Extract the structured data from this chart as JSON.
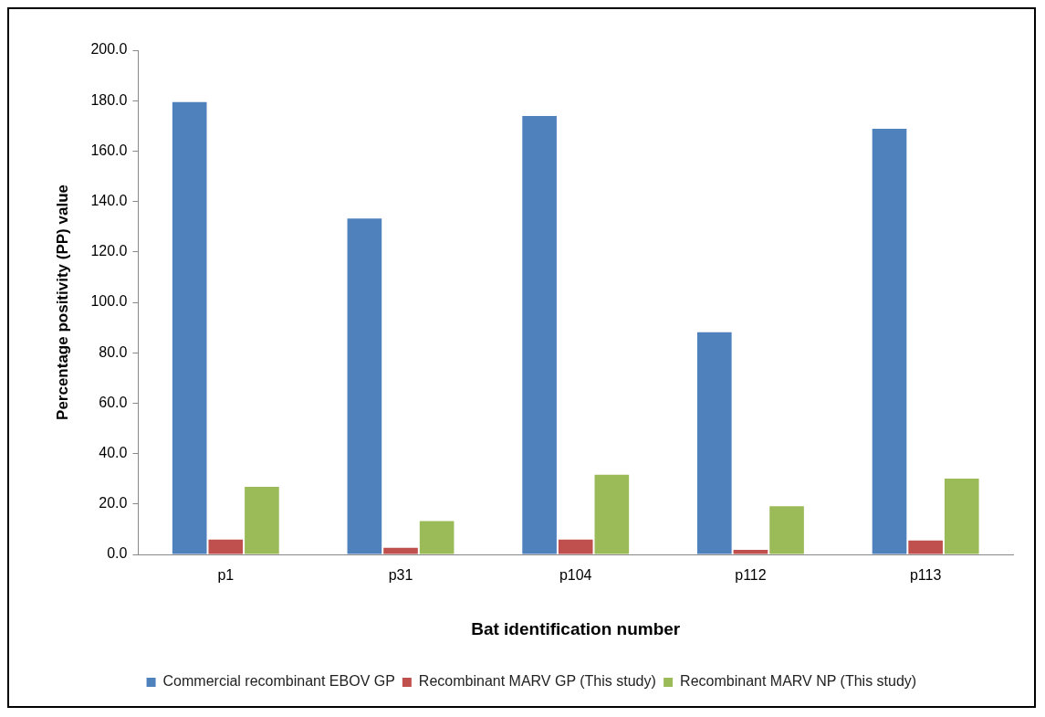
{
  "chart_data": {
    "type": "bar",
    "xlabel": "Bat identification number",
    "ylabel": "Percentage positivity (PP) value",
    "categories": [
      "p1",
      "p31",
      "p104",
      "p112",
      "p113"
    ],
    "series": [
      {
        "name": "Commercial recombinant EBOV GP",
        "color": "#4f81bd",
        "values": [
          179.4,
          133.2,
          173.9,
          88.1,
          168.8
        ]
      },
      {
        "name": "Recombinant MARV GP (This study)",
        "color": "#c0504d",
        "values": [
          5.9,
          2.6,
          5.9,
          1.8,
          5.5
        ]
      },
      {
        "name": "Recombinant MARV NP (This study)",
        "color": "#9bbb59",
        "values": [
          26.8,
          13.2,
          31.6,
          19.1,
          30.1
        ]
      }
    ],
    "ylim": [
      0,
      200
    ],
    "yticks": [
      {
        "value": 0,
        "label": "0.0"
      },
      {
        "value": 20,
        "label": "20.0"
      },
      {
        "value": 40,
        "label": "40.0"
      },
      {
        "value": 60,
        "label": "60.0"
      },
      {
        "value": 80,
        "label": "80.0"
      },
      {
        "value": 100,
        "label": "100.0"
      },
      {
        "value": 120,
        "label": "120.0"
      },
      {
        "value": 140,
        "label": "140.0"
      },
      {
        "value": 160,
        "label": "160.0"
      },
      {
        "value": 180,
        "label": "180.0"
      },
      {
        "value": 200,
        "label": "200.0"
      }
    ],
    "grid": false,
    "legend": "bottom"
  }
}
